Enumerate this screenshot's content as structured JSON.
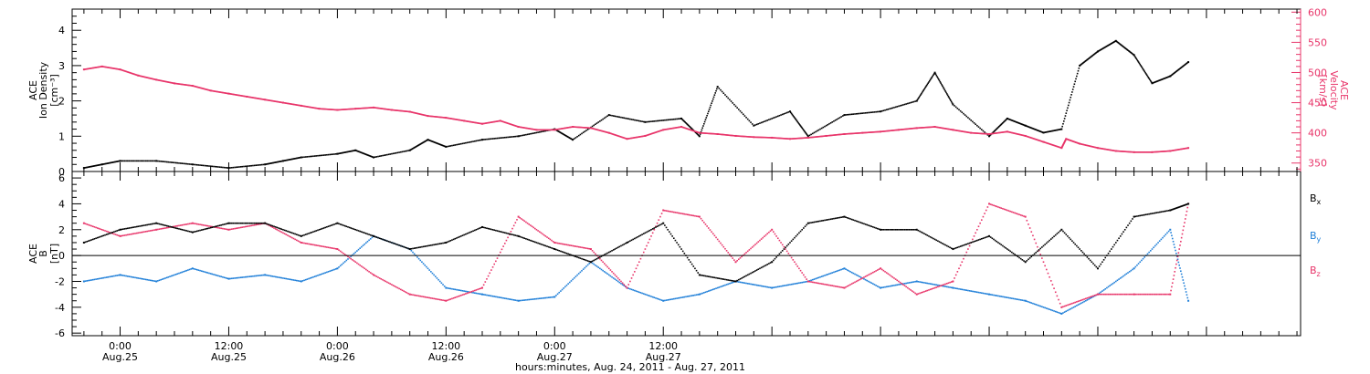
{
  "figure": {
    "xlabel": "hours:minutes, Aug. 24, 2011 - Aug. 27, 2011",
    "x_ticks": [
      {
        "time": "0:00",
        "date": "Aug.25"
      },
      {
        "time": "12:00",
        "date": "Aug.25"
      },
      {
        "time": "0:00",
        "date": "Aug.26"
      },
      {
        "time": "12:00",
        "date": "Aug.26"
      },
      {
        "time": "0:00",
        "date": "Aug.27"
      },
      {
        "time": "12:00",
        "date": "Aug.27"
      }
    ],
    "colors": {
      "black": "#000000",
      "pink": "#e8356a",
      "blue": "#1f7fd8"
    }
  },
  "chart_data": [
    {
      "type": "scatter",
      "panel": "top",
      "ylabel": [
        "ACE",
        "Ion Density",
        "[cm⁻³]"
      ],
      "ylim": [
        0,
        4.6
      ],
      "yticks": [
        "0",
        "1",
        "2",
        "3",
        "4"
      ],
      "y2label": [
        "ACE",
        "Velocity",
        "[km/s]"
      ],
      "y2lim": [
        336,
        605
      ],
      "y2ticks": [
        "350",
        "400",
        "450",
        "500",
        "550",
        "600"
      ],
      "series": [
        {
          "color": "#000000",
          "axis": "left",
          "x": [
            -4,
            -2,
            0,
            4,
            8,
            12,
            16,
            18,
            20,
            24,
            26,
            28,
            32,
            34,
            36,
            40,
            44,
            48,
            50,
            54,
            58,
            62,
            64,
            66,
            70,
            74,
            76,
            80,
            84,
            88,
            90,
            92,
            96,
            98,
            100,
            102,
            104,
            106,
            108,
            110,
            112,
            114,
            116,
            118
          ],
          "y": [
            0.1,
            0.2,
            0.3,
            0.3,
            0.2,
            0.1,
            0.2,
            0.3,
            0.4,
            0.5,
            0.6,
            0.4,
            0.6,
            0.9,
            0.7,
            0.9,
            1.0,
            1.2,
            0.9,
            1.6,
            1.4,
            1.5,
            1.0,
            2.4,
            1.3,
            1.7,
            1.0,
            1.6,
            1.7,
            2.0,
            2.8,
            1.9,
            1.0,
            1.5,
            1.3,
            1.1,
            1.2,
            3.0,
            3.4,
            3.7,
            3.3,
            2.5,
            2.7,
            3.1
          ]
        },
        {
          "color": "#e8356a",
          "axis": "right",
          "x": [
            -4,
            -2,
            0,
            2,
            4,
            6,
            8,
            10,
            12,
            14,
            16,
            18,
            20,
            22,
            24,
            26,
            28,
            30,
            32,
            34,
            36,
            38,
            40,
            42,
            44,
            46,
            48,
            50,
            52,
            54,
            56,
            58,
            60,
            62,
            64,
            66,
            68,
            70,
            72,
            74,
            76,
            78,
            80,
            82,
            84,
            86,
            88,
            90,
            92,
            94,
            96,
            98,
            100,
            102,
            104,
            104.5,
            106,
            108,
            110,
            112,
            114,
            116,
            118
          ],
          "y": [
            505,
            510,
            505,
            495,
            488,
            482,
            478,
            470,
            465,
            460,
            455,
            450,
            445,
            440,
            438,
            440,
            442,
            438,
            435,
            428,
            425,
            420,
            415,
            420,
            410,
            405,
            405,
            410,
            408,
            400,
            390,
            395,
            405,
            410,
            400,
            398,
            395,
            393,
            392,
            390,
            392,
            395,
            398,
            400,
            402,
            405,
            408,
            410,
            405,
            400,
            398,
            402,
            395,
            385,
            375,
            390,
            382,
            375,
            370,
            368,
            368,
            370,
            375
          ]
        }
      ]
    },
    {
      "type": "scatter",
      "panel": "bottom",
      "ylabel": [
        "ACE",
        "B",
        "[nT]"
      ],
      "ylim": [
        -6.2,
        6.5
      ],
      "yticks": [
        "-6",
        "-4",
        "-2",
        "0",
        "2",
        "4",
        "6"
      ],
      "series": [
        {
          "name": "Bx",
          "color": "#000000",
          "x": [
            -4,
            0,
            4,
            8,
            12,
            16,
            20,
            24,
            28,
            32,
            36,
            40,
            44,
            48,
            52,
            56,
            60,
            64,
            68,
            72,
            76,
            80,
            84,
            88,
            92,
            96,
            100,
            104,
            108,
            112,
            116,
            118
          ],
          "y": [
            1.0,
            2.0,
            2.5,
            1.8,
            2.5,
            2.5,
            1.5,
            2.5,
            1.5,
            0.5,
            1.0,
            2.2,
            1.5,
            0.5,
            -0.5,
            1.0,
            2.5,
            -1.5,
            -2.0,
            -0.5,
            2.5,
            3.0,
            2.0,
            2.0,
            0.5,
            1.5,
            -0.5,
            2.0,
            -1.0,
            3.0,
            3.5,
            4.0
          ]
        },
        {
          "name": "By",
          "color": "#1f7fd8",
          "x": [
            -4,
            0,
            4,
            8,
            12,
            16,
            20,
            24,
            28,
            32,
            36,
            40,
            44,
            48,
            52,
            56,
            60,
            64,
            68,
            72,
            76,
            80,
            84,
            88,
            92,
            96,
            100,
            104,
            108,
            112,
            116,
            118
          ],
          "y": [
            -2.0,
            -1.5,
            -2.0,
            -1.0,
            -1.8,
            -1.5,
            -2.0,
            -1.0,
            1.5,
            0.5,
            -2.5,
            -3.0,
            -3.5,
            -3.2,
            -0.5,
            -2.5,
            -3.5,
            -3.0,
            -2.0,
            -2.5,
            -2.0,
            -1.0,
            -2.5,
            -2.0,
            -2.5,
            -3.0,
            -3.5,
            -4.5,
            -3.0,
            -1.0,
            2.0,
            -3.5
          ]
        },
        {
          "name": "Bz",
          "color": "#e8356a",
          "x": [
            -4,
            0,
            4,
            8,
            12,
            16,
            20,
            24,
            28,
            32,
            36,
            40,
            44,
            48,
            52,
            56,
            60,
            64,
            68,
            72,
            76,
            80,
            84,
            88,
            92,
            96,
            100,
            104,
            108,
            112,
            116,
            118
          ],
          "y": [
            2.5,
            1.5,
            2.0,
            2.5,
            2.0,
            2.5,
            1.0,
            0.5,
            -1.5,
            -3.0,
            -3.5,
            -2.5,
            3.0,
            1.0,
            0.5,
            -2.5,
            3.5,
            3.0,
            -0.5,
            2.0,
            -2.0,
            -2.5,
            -1.0,
            -3.0,
            -2.0,
            4.0,
            3.0,
            -4.0,
            -3.0,
            -3.0,
            -3.0,
            4.0
          ]
        }
      ],
      "legend": [
        "Bx",
        "By",
        "Bz"
      ]
    }
  ]
}
